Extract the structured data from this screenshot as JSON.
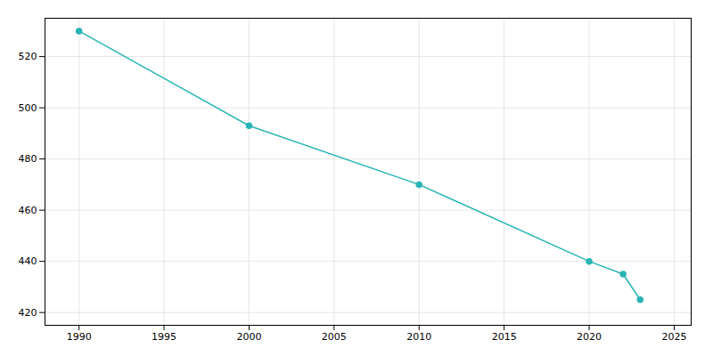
{
  "chart_data": {
    "type": "line",
    "x": [
      1990,
      2000,
      2010,
      2020,
      2022,
      2023
    ],
    "values": [
      530,
      493,
      470,
      440,
      435,
      425
    ],
    "color": "#2ab5b5",
    "marker": "circle",
    "xlim": [
      1988,
      2026
    ],
    "ylim": [
      415,
      535
    ],
    "xticks": [
      1990,
      1995,
      2000,
      2005,
      2010,
      2015,
      2020,
      2025
    ],
    "yticks": [
      420,
      440,
      460,
      480,
      500,
      520
    ],
    "grid": true
  }
}
